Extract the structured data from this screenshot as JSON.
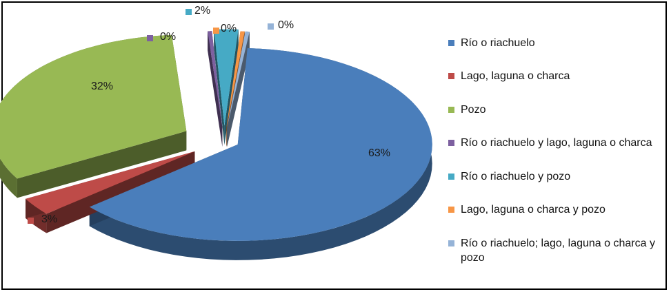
{
  "chart_data": {
    "type": "pie",
    "title": "",
    "series": [
      {
        "name": "",
        "labels": [
          "Río o riachuelo",
          "Lago, laguna o charca",
          "Pozo",
          "Río o riachuelo y lago, laguna o charca",
          "Río o riachuelo y pozo",
          "Lago, laguna o charca y pozo",
          "Río o riachuelo; lago, laguna o charca y pozo"
        ],
        "values": [
          63,
          3,
          32,
          0,
          2,
          0,
          0
        ],
        "data_labels": [
          "63%",
          "3%",
          "32%",
          "0%",
          "2%",
          "0%",
          "0%"
        ]
      }
    ],
    "colors": [
      "#4a7ebb",
      "#be4b48",
      "#98b954",
      "#7d60a0",
      "#46aac5",
      "#f79646",
      "#95b3d7"
    ],
    "style": "3d-exploded",
    "legend_position": "right"
  }
}
